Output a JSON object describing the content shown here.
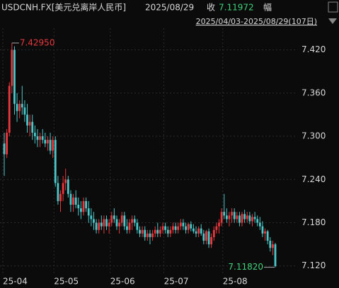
{
  "chart_data": {
    "type": "candlestick",
    "title": "USDCNH.FX[美元兑离岸人民币]",
    "date": "2025/08/29",
    "close_label": "收",
    "close_value": 7.11972,
    "change_label": "幅",
    "range": "2025/04/03-2025/08/29(107日)",
    "up_color": "#e8383d",
    "down_color": "#4cc7c9",
    "grid": true,
    "ylim": [
      7.107,
      7.45
    ],
    "yticks": [
      {
        "value": 7.42,
        "label": "7.420"
      },
      {
        "value": 7.36,
        "label": "7.360"
      },
      {
        "value": 7.3,
        "label": "7.300"
      },
      {
        "value": 7.24,
        "label": "7.240"
      },
      {
        "value": 7.18,
        "label": "7.180"
      },
      {
        "value": 7.12,
        "label": "7.120"
      }
    ],
    "annotations": [
      {
        "value": 7.4295,
        "label": "7.42950",
        "color": "#e8383d"
      },
      {
        "value": 7.1182,
        "label": "7.11820",
        "color": "#3fd27a"
      }
    ],
    "categories": [
      "25-04",
      null,
      null,
      null,
      null,
      null,
      null,
      null,
      null,
      null,
      null,
      null,
      null,
      null,
      null,
      null,
      null,
      null,
      null,
      null,
      "25-05",
      null,
      null,
      null,
      null,
      null,
      null,
      null,
      null,
      null,
      null,
      null,
      null,
      null,
      null,
      null,
      null,
      null,
      null,
      null,
      null,
      null,
      "25-06",
      null,
      null,
      null,
      null,
      null,
      null,
      null,
      null,
      null,
      null,
      null,
      null,
      null,
      null,
      null,
      null,
      null,
      null,
      null,
      null,
      "25-07",
      null,
      null,
      null,
      null,
      null,
      null,
      null,
      null,
      null,
      null,
      null,
      null,
      null,
      null,
      null,
      null,
      null,
      null,
      null,
      null,
      null,
      null,
      "25-08",
      null,
      null,
      null,
      null,
      null,
      null,
      null,
      null,
      null,
      null,
      null,
      null,
      null,
      null,
      null,
      null,
      null,
      null,
      null,
      null
    ],
    "open": [
      7.29,
      7.275,
      7.305,
      7.37,
      7.42,
      7.345,
      7.335,
      7.345,
      7.34,
      7.33,
      7.315,
      7.32,
      7.305,
      7.3,
      7.295,
      7.3,
      7.295,
      7.29,
      7.295,
      7.28,
      7.295,
      7.235,
      7.21,
      7.22,
      7.235,
      7.24,
      7.22,
      7.205,
      7.215,
      7.205,
      7.2,
      7.195,
      7.21,
      7.2,
      7.19,
      7.185,
      7.18,
      7.17,
      7.18,
      7.175,
      7.185,
      7.175,
      7.18,
      7.19,
      7.185,
      7.175,
      7.18,
      7.19,
      7.175,
      7.17,
      7.18,
      7.185,
      7.18,
      7.17,
      7.165,
      7.17,
      7.16,
      7.165,
      7.16,
      7.165,
      7.17,
      7.165,
      7.17,
      7.175,
      7.17,
      7.165,
      7.17,
      7.175,
      7.17,
      7.175,
      7.18,
      7.175,
      7.17,
      7.178,
      7.172,
      7.168,
      7.165,
      7.172,
      7.165,
      7.155,
      7.168,
      7.15,
      7.16,
      7.17,
      7.175,
      7.18,
      7.195,
      7.19,
      7.185,
      7.19,
      7.195,
      7.185,
      7.19,
      7.18,
      7.192,
      7.185,
      7.19,
      7.182,
      7.188,
      7.185,
      7.18,
      7.175,
      7.165,
      7.168,
      7.155,
      7.145,
      7.15
    ],
    "high": [
      7.305,
      7.31,
      7.375,
      7.4295,
      7.425,
      7.36,
      7.35,
      7.37,
      7.35,
      7.345,
      7.33,
      7.33,
      7.315,
      7.31,
      7.305,
      7.31,
      7.305,
      7.3,
      7.305,
      7.3,
      7.3,
      7.245,
      7.225,
      7.245,
      7.255,
      7.245,
      7.225,
      7.22,
      7.225,
      7.215,
      7.21,
      7.215,
      7.215,
      7.21,
      7.2,
      7.195,
      7.185,
      7.185,
      7.19,
      7.19,
      7.19,
      7.185,
      7.195,
      7.2,
      7.19,
      7.185,
      7.195,
      7.195,
      7.185,
      7.185,
      7.19,
      7.19,
      7.185,
      7.175,
      7.175,
      7.175,
      7.17,
      7.17,
      7.17,
      7.175,
      7.18,
      7.175,
      7.18,
      7.18,
      7.175,
      7.175,
      7.18,
      7.18,
      7.18,
      7.185,
      7.185,
      7.18,
      7.18,
      7.182,
      7.178,
      7.175,
      7.175,
      7.178,
      7.17,
      7.17,
      7.172,
      7.165,
      7.175,
      7.18,
      7.185,
      7.2,
      7.22,
      7.2,
      7.195,
      7.2,
      7.2,
      7.195,
      7.195,
      7.195,
      7.198,
      7.195,
      7.195,
      7.192,
      7.195,
      7.19,
      7.188,
      7.182,
      7.172,
      7.17,
      7.16,
      7.155,
      7.152
    ],
    "low": [
      7.245,
      7.27,
      7.3,
      7.36,
      7.33,
      7.32,
      7.325,
      7.33,
      7.32,
      7.305,
      7.3,
      7.295,
      7.29,
      7.285,
      7.285,
      7.29,
      7.285,
      7.28,
      7.275,
      7.27,
      7.23,
      7.205,
      7.195,
      7.21,
      7.225,
      7.215,
      7.195,
      7.195,
      7.2,
      7.19,
      7.185,
      7.19,
      7.195,
      7.18,
      7.175,
      7.17,
      7.165,
      7.165,
      7.17,
      7.165,
      7.17,
      7.165,
      7.175,
      7.18,
      7.17,
      7.165,
      7.175,
      7.17,
      7.165,
      7.165,
      7.17,
      7.175,
      7.165,
      7.16,
      7.16,
      7.155,
      7.155,
      7.15,
      7.155,
      7.16,
      7.16,
      7.16,
      7.165,
      7.165,
      7.16,
      7.16,
      7.165,
      7.165,
      7.165,
      7.17,
      7.17,
      7.165,
      7.165,
      7.168,
      7.165,
      7.16,
      7.16,
      7.162,
      7.15,
      7.15,
      7.145,
      7.145,
      7.155,
      7.165,
      7.165,
      7.175,
      7.185,
      7.18,
      7.175,
      7.18,
      7.18,
      7.18,
      7.175,
      7.175,
      7.18,
      7.18,
      7.178,
      7.175,
      7.18,
      7.175,
      7.17,
      7.16,
      7.155,
      7.15,
      7.14,
      7.135,
      7.1182
    ],
    "close": [
      7.275,
      7.305,
      7.37,
      7.42,
      7.345,
      7.335,
      7.345,
      7.34,
      7.33,
      7.315,
      7.32,
      7.305,
      7.3,
      7.295,
      7.3,
      7.295,
      7.29,
      7.295,
      7.28,
      7.295,
      7.235,
      7.21,
      7.22,
      7.235,
      7.24,
      7.22,
      7.205,
      7.215,
      7.205,
      7.2,
      7.195,
      7.21,
      7.2,
      7.19,
      7.185,
      7.18,
      7.17,
      7.18,
      7.175,
      7.185,
      7.175,
      7.18,
      7.19,
      7.185,
      7.175,
      7.18,
      7.19,
      7.175,
      7.17,
      7.18,
      7.185,
      7.18,
      7.17,
      7.165,
      7.17,
      7.16,
      7.165,
      7.16,
      7.165,
      7.17,
      7.165,
      7.17,
      7.175,
      7.17,
      7.165,
      7.17,
      7.175,
      7.17,
      7.175,
      7.18,
      7.175,
      7.17,
      7.178,
      7.172,
      7.168,
      7.165,
      7.172,
      7.165,
      7.155,
      7.168,
      7.15,
      7.16,
      7.17,
      7.175,
      7.18,
      7.195,
      7.19,
      7.185,
      7.19,
      7.195,
      7.185,
      7.19,
      7.18,
      7.192,
      7.185,
      7.19,
      7.182,
      7.188,
      7.185,
      7.18,
      7.175,
      7.165,
      7.168,
      7.155,
      7.145,
      7.15,
      7.11972
    ]
  }
}
